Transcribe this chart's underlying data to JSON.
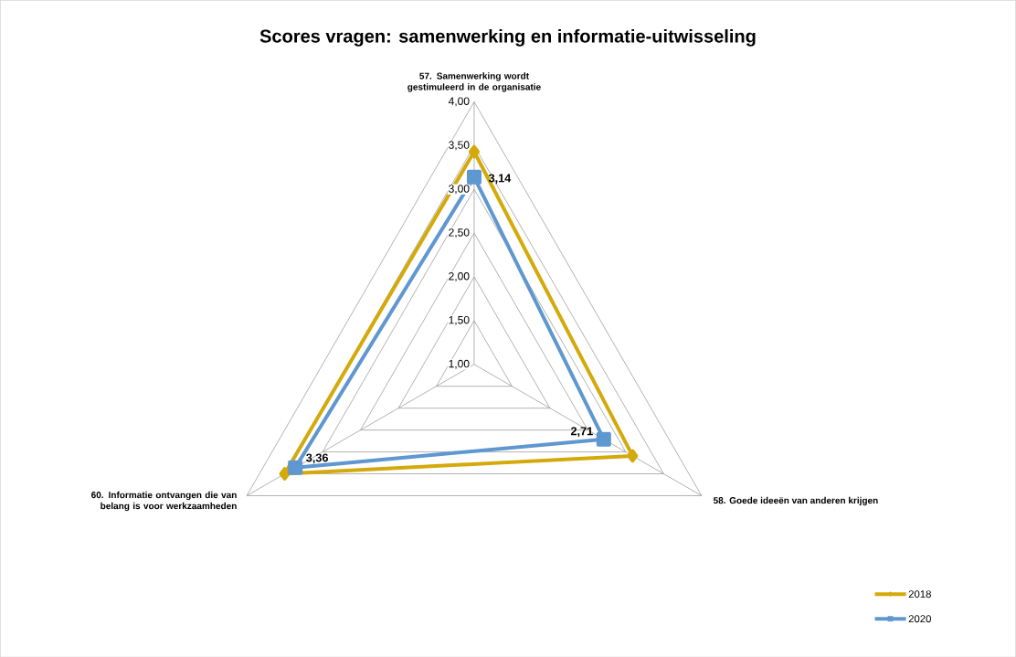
{
  "chart_data": {
    "type": "radar",
    "title": "Scores vragen: samenwerking en informatie-uitwisseling",
    "categories": [
      "57. Samenwerking wordt gestimuleerd in de organisatie",
      "58. Goede ideeën van anderen krijgen",
      "60. Informatie ontvangen die van belang is voor werkzaamheden"
    ],
    "ylim": [
      1,
      4
    ],
    "yticks": [
      {
        "value": 1,
        "label": "1,00"
      },
      {
        "value": 1.5,
        "label": "1,50"
      },
      {
        "value": 2,
        "label": "2,00"
      },
      {
        "value": 2.5,
        "label": "2,50"
      },
      {
        "value": 3,
        "label": "3,00"
      },
      {
        "value": 3.5,
        "label": "3,50"
      },
      {
        "value": 4,
        "label": "4,00"
      }
    ],
    "series": [
      {
        "name": "2018",
        "color": "#d4a90a",
        "values": [
          3.43,
          3.09,
          3.5
        ],
        "marker": "diamond"
      },
      {
        "name": "2020",
        "color": "#5f97d0",
        "values": [
          3.14,
          2.71,
          3.36
        ],
        "marker": "square",
        "value_labels": [
          "3,14",
          "2,71",
          "3,36"
        ]
      }
    ],
    "legend": "bottom right",
    "line_style": "solid"
  }
}
